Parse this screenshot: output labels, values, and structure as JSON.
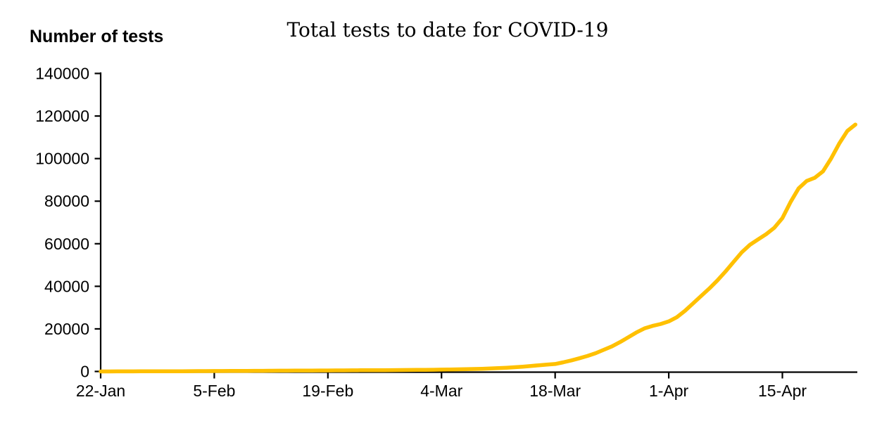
{
  "colors": {
    "background": "#ffffff",
    "text": "#000000"
  },
  "chart_data": {
    "type": "line",
    "title": "Total tests to date for COVID-19",
    "ylabel": "Number of tests",
    "xlabel": "",
    "ylim": [
      0,
      140000
    ],
    "ytick_step": 20000,
    "ytick_labels": [
      "0",
      "20000",
      "40000",
      "60000",
      "80000",
      "100000",
      "120000",
      "140000"
    ],
    "xtick_labels": [
      "22-Jan",
      "5-Feb",
      "19-Feb",
      "4-Mar",
      "18-Mar",
      "1-Apr",
      "15-Apr"
    ],
    "xtick_indices": [
      0,
      14,
      28,
      42,
      56,
      70,
      84
    ],
    "grid": false,
    "legend": "none",
    "line_color": "#FFC000",
    "axis_color": "#000000",
    "x": [
      "22-Jan",
      "23-Jan",
      "24-Jan",
      "25-Jan",
      "26-Jan",
      "27-Jan",
      "28-Jan",
      "29-Jan",
      "30-Jan",
      "31-Jan",
      "1-Feb",
      "2-Feb",
      "3-Feb",
      "4-Feb",
      "5-Feb",
      "6-Feb",
      "7-Feb",
      "8-Feb",
      "9-Feb",
      "10-Feb",
      "11-Feb",
      "12-Feb",
      "13-Feb",
      "14-Feb",
      "15-Feb",
      "16-Feb",
      "17-Feb",
      "18-Feb",
      "19-Feb",
      "20-Feb",
      "21-Feb",
      "22-Feb",
      "23-Feb",
      "24-Feb",
      "25-Feb",
      "26-Feb",
      "27-Feb",
      "28-Feb",
      "29-Feb",
      "1-Mar",
      "2-Mar",
      "3-Mar",
      "4-Mar",
      "5-Mar",
      "6-Mar",
      "7-Mar",
      "8-Mar",
      "9-Mar",
      "10-Mar",
      "11-Mar",
      "12-Mar",
      "13-Mar",
      "14-Mar",
      "15-Mar",
      "16-Mar",
      "17-Mar",
      "18-Mar",
      "19-Mar",
      "20-Mar",
      "21-Mar",
      "22-Mar",
      "23-Mar",
      "24-Mar",
      "25-Mar",
      "26-Mar",
      "27-Mar",
      "28-Mar",
      "29-Mar",
      "30-Mar",
      "31-Mar",
      "1-Apr",
      "2-Apr",
      "3-Apr",
      "4-Apr",
      "5-Apr",
      "6-Apr",
      "7-Apr",
      "8-Apr",
      "9-Apr",
      "10-Apr",
      "11-Apr",
      "12-Apr",
      "13-Apr",
      "14-Apr",
      "15-Apr",
      "16-Apr",
      "17-Apr",
      "18-Apr",
      "19-Apr",
      "20-Apr",
      "21-Apr",
      "22-Apr",
      "23-Apr",
      "24-Apr"
    ],
    "values": [
      0,
      10,
      20,
      30,
      40,
      50,
      60,
      70,
      85,
      100,
      115,
      130,
      150,
      170,
      190,
      210,
      230,
      250,
      270,
      290,
      310,
      330,
      350,
      370,
      390,
      410,
      430,
      450,
      470,
      490,
      510,
      530,
      550,
      570,
      590,
      610,
      630,
      660,
      690,
      720,
      760,
      800,
      850,
      910,
      980,
      1060,
      1150,
      1260,
      1400,
      1560,
      1750,
      1980,
      2250,
      2550,
      2900,
      3200,
      3500,
      4300,
      5200,
      6200,
      7300,
      8600,
      10200,
      11800,
      13800,
      16000,
      18300,
      20200,
      21400,
      22300,
      23500,
      25500,
      28500,
      32000,
      35500,
      39000,
      42800,
      47000,
      51500,
      56000,
      59500,
      62000,
      64500,
      67500,
      72000,
      79500,
      86000,
      89500,
      91000,
      94000,
      100000,
      107000,
      113000,
      116000
    ]
  }
}
